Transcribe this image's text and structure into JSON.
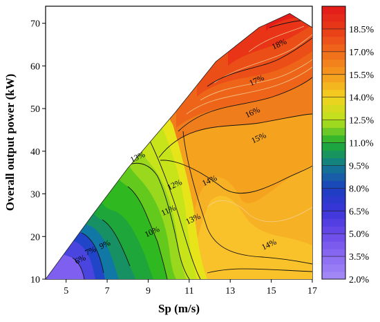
{
  "chart_data": {
    "type": "contour",
    "title": "",
    "xlabel": "Sp (m/s)",
    "ylabel": "Overall output power (kW)",
    "xlim": [
      4,
      17
    ],
    "ylim": [
      10,
      74
    ],
    "x_ticks": [
      5,
      7,
      9,
      11,
      13,
      15,
      17
    ],
    "y_ticks": [
      10,
      20,
      30,
      40,
      50,
      60,
      70
    ],
    "domain_boundary": [
      {
        "x": 4.0,
        "y": 10.0
      },
      {
        "x": 6.2,
        "y": 24.5
      },
      {
        "x": 8.0,
        "y": 36.0
      },
      {
        "x": 10.3,
        "y": 49.0
      },
      {
        "x": 12.3,
        "y": 61.0
      },
      {
        "x": 14.4,
        "y": 69.0
      },
      {
        "x": 15.9,
        "y": 72.3
      },
      {
        "x": 17.0,
        "y": 69.0
      },
      {
        "x": 17.0,
        "y": 10.0
      }
    ],
    "colorbar": {
      "unit": "%",
      "levels": [
        2.0,
        3.5,
        5.0,
        6.5,
        8.0,
        9.5,
        11.0,
        12.5,
        14.0,
        15.5,
        17.0,
        18.5
      ],
      "tick_labels": [
        "2.0%",
        "3.5%",
        "5.0%",
        "6.5%",
        "8.0%",
        "9.5%",
        "11.0%",
        "12.5%",
        "14.0%",
        "15.5%",
        "17.0%",
        "18.5%"
      ],
      "range": [
        2.0,
        20.0
      ]
    },
    "contour_labels": [
      {
        "text": "6%",
        "x": 5.7,
        "y": 14.5
      },
      {
        "text": "7%",
        "x": 6.2,
        "y": 16.5
      },
      {
        "text": "9%",
        "x": 6.9,
        "y": 18.0
      },
      {
        "text": "10%",
        "x": 9.2,
        "y": 21.0
      },
      {
        "text": "11%",
        "x": 10.0,
        "y": 26.0
      },
      {
        "text": "12%",
        "x": 10.3,
        "y": 32.0
      },
      {
        "text": "13%",
        "x": 8.5,
        "y": 38.5
      },
      {
        "text": "13%",
        "x": 11.2,
        "y": 24.0
      },
      {
        "text": "14%",
        "x": 12.0,
        "y": 33.0
      },
      {
        "text": "14%",
        "x": 14.9,
        "y": 18.0
      },
      {
        "text": "15%",
        "x": 14.4,
        "y": 43.0
      },
      {
        "text": "16%",
        "x": 14.1,
        "y": 49.0
      },
      {
        "text": "17%",
        "x": 14.3,
        "y": 56.5
      },
      {
        "text": "18%",
        "x": 15.4,
        "y": 65.0
      }
    ],
    "grid": false,
    "legend": "colorbar-right"
  }
}
